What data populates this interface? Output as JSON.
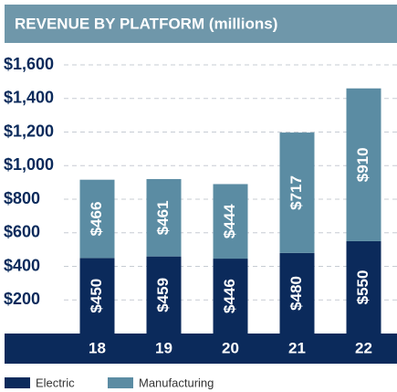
{
  "chart_data": {
    "type": "stacked_bar",
    "title": "REVENUE BY PLATFORM  (millions)",
    "categories": [
      "18",
      "19",
      "20",
      "21",
      "22"
    ],
    "series": [
      {
        "name": "Electric",
        "color": "#0b2a5b",
        "values": [
          450,
          459,
          446,
          480,
          550
        ],
        "value_labels": [
          "$450",
          "$459",
          "$446",
          "$480",
          "$550"
        ]
      },
      {
        "name": "Manufacturing",
        "color": "#5b8ca3",
        "values": [
          466,
          461,
          444,
          717,
          910
        ],
        "value_labels": [
          "$466",
          "$461",
          "$444",
          "$717",
          "$910"
        ]
      }
    ],
    "ylim": [
      0,
      1600
    ],
    "yticks": [
      {
        "value": 200,
        "label": "$200"
      },
      {
        "value": 400,
        "label": "$400"
      },
      {
        "value": 600,
        "label": "$600"
      },
      {
        "value": 800,
        "label": "$800"
      },
      {
        "value": 1000,
        "label": "$1,000"
      },
      {
        "value": 1200,
        "label": "$1,200"
      },
      {
        "value": 1400,
        "label": "$1,400"
      },
      {
        "value": 1600,
        "label": "$1,600"
      }
    ],
    "grid": true
  }
}
